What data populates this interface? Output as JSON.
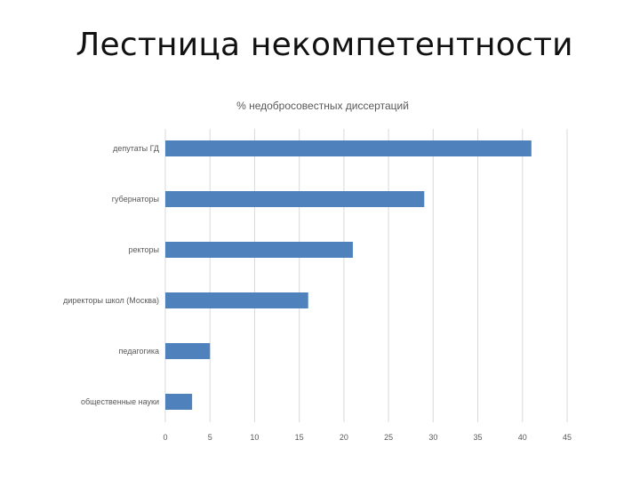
{
  "slide": {
    "title": "Лестница некомпетентности"
  },
  "chart_data": {
    "type": "bar",
    "orientation": "horizontal",
    "title": "% недобросовестных диссертаций",
    "categories": [
      "депутаты ГД",
      "губернаторы",
      "ректоры",
      "директоры школ (Москва)",
      "педагогика",
      "общественные науки"
    ],
    "values": [
      41,
      29,
      21,
      16,
      5,
      3
    ],
    "xlim": [
      0,
      45
    ],
    "xticks": [
      0,
      5,
      10,
      15,
      20,
      25,
      30,
      35,
      40,
      45
    ],
    "xlabel": "",
    "ylabel": "",
    "grid": true,
    "legend": "none",
    "bar_color": "#4f81bd",
    "grid_color": "#d9d9d9",
    "text_color": "#595959"
  }
}
